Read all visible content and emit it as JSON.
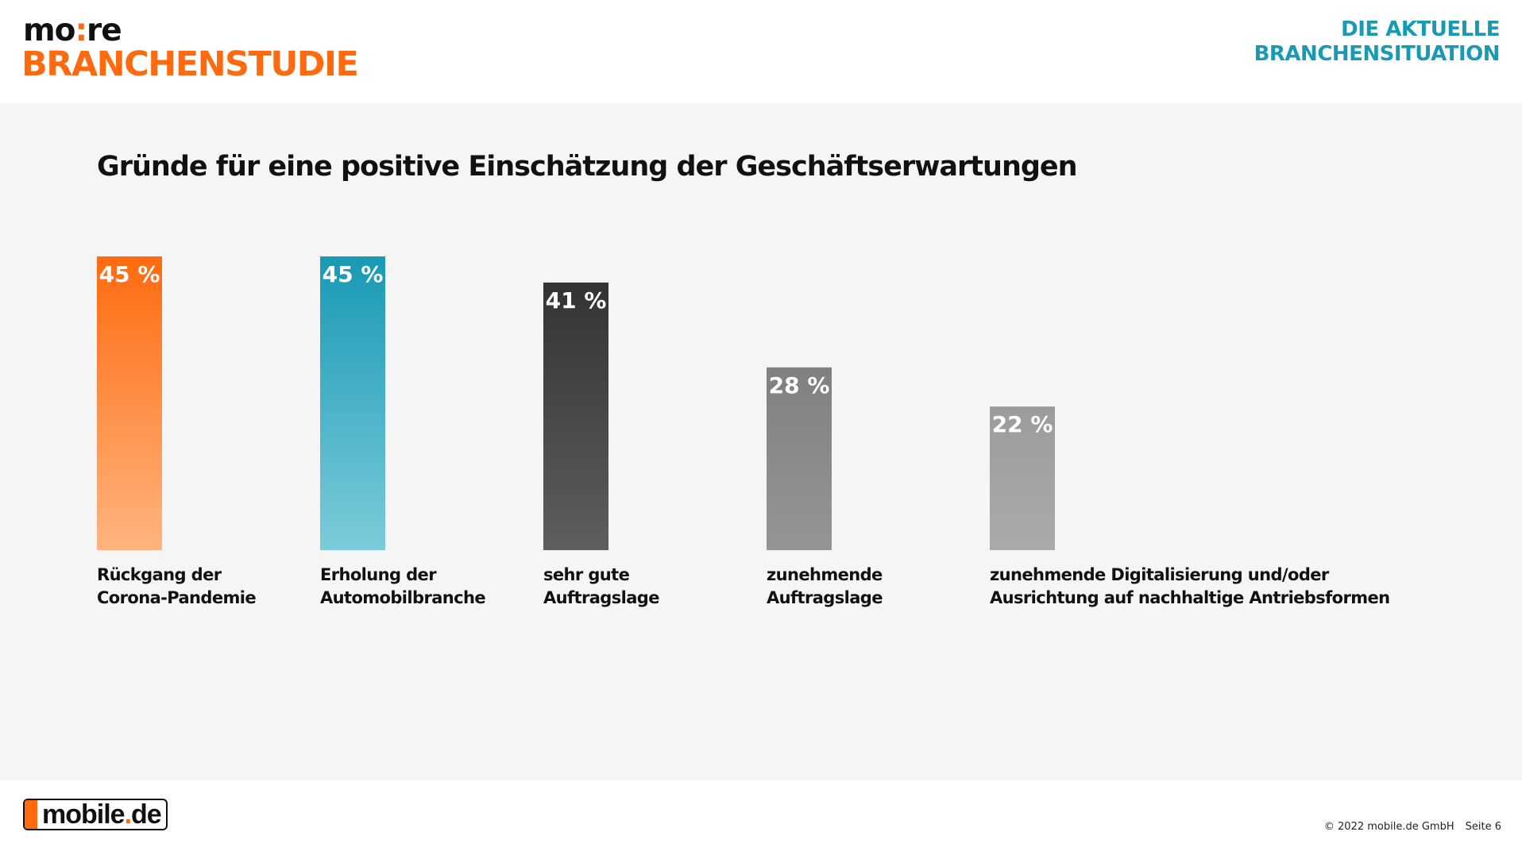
{
  "header": {
    "logo_top_left": "mo",
    "logo_top_colon": ":",
    "logo_top_right": "re",
    "logo_bottom": "BRANCHENSTUDIE",
    "topic_line1": "DIE AKTUELLE",
    "topic_line2": "BRANCHENSITUATION"
  },
  "footer": {
    "logo_word_main": "mobile",
    "logo_word_dot": ".",
    "logo_word_tld": "de",
    "copyright": "© 2022 mobile.de GmbH",
    "page": "Seite 6"
  },
  "colors": {
    "accent_orange": "#ff6a0f",
    "accent_teal": "#1899b4"
  },
  "chart_data": {
    "type": "bar",
    "title": "Gründe für eine positive Einschätzung der Geschäftserwartungen",
    "xlabel": "",
    "ylabel": "",
    "ylim": [
      0,
      45
    ],
    "grid": false,
    "legend": "none",
    "value_suffix": "%",
    "categories": [
      [
        "Rückgang der",
        "Corona-Pandemie"
      ],
      [
        "Erholung der",
        "Automobilbranche"
      ],
      [
        "sehr gute",
        "Auftragslage"
      ],
      [
        "zunehmende",
        "Auftragslage"
      ],
      [
        "zunehmende Digitalisierung und/oder",
        "Ausrichtung auf nachhaltige Antriebsformen"
      ]
    ],
    "values": [
      45,
      45,
      41,
      28,
      22
    ],
    "value_labels": [
      "45 %",
      "45 %",
      "41 %",
      "28 %",
      "22 %"
    ],
    "bar_colors": [
      [
        "#ff6a0f",
        "#ffb47f"
      ],
      [
        "#1899b4",
        "#7ccbd9"
      ],
      [
        "#333333",
        "#5e5e5e"
      ],
      [
        "#808080",
        "#959595"
      ],
      [
        "#9c9c9c",
        "#aaaaaa"
      ]
    ]
  }
}
